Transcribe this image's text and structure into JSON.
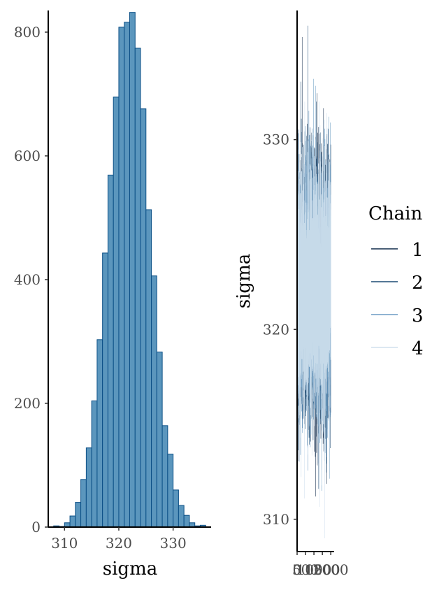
{
  "chart_data": [
    {
      "type": "bar",
      "panel": "histogram",
      "xlabel": "sigma",
      "ylabel": "",
      "xlim": [
        307,
        337
      ],
      "ylim": [
        0,
        835
      ],
      "x_ticks": [
        310,
        320,
        330
      ],
      "y_ticks": [
        0,
        200,
        400,
        600,
        800
      ],
      "bin_width": 1,
      "bin_starts": [
        308,
        309,
        310,
        311,
        312,
        313,
        314,
        315,
        316,
        317,
        318,
        319,
        320,
        321,
        322,
        323,
        324,
        325,
        326,
        327,
        328,
        329,
        330,
        331,
        332,
        333,
        334,
        335
      ],
      "values": [
        2,
        1,
        7,
        18,
        40,
        77,
        128,
        204,
        303,
        443,
        569,
        695,
        808,
        816,
        832,
        774,
        676,
        513,
        406,
        283,
        164,
        118,
        60,
        35,
        19,
        7,
        2,
        3
      ],
      "fill_color": "#5b96bd",
      "edge_color": "#0b4f86"
    },
    {
      "type": "line",
      "panel": "trace",
      "xlabel": "",
      "ylabel": "sigma",
      "xlim": [
        0,
        2200
      ],
      "ylim": [
        308.3,
        336.8
      ],
      "x_ticks": [
        0,
        500,
        1000,
        1500,
        2000
      ],
      "x_tick_labels": [
        "0",
        "500",
        "1000",
        "1500",
        "2000"
      ],
      "y_ticks": [
        310,
        320,
        330
      ],
      "iterations": 2000,
      "legend": {
        "title": "Chain",
        "position": "right",
        "entries": [
          {
            "label": "1",
            "color": "#0f2a4a"
          },
          {
            "label": "2",
            "color": "#1c4a73"
          },
          {
            "label": "3",
            "color": "#6b9cc3"
          },
          {
            "label": "4",
            "color": "#d0e1ee"
          }
        ]
      },
      "series": [
        {
          "name": "1",
          "color": "#0f2a4a",
          "mean": 322.2,
          "sd": 3.1,
          "max": 335.4,
          "min": 311.2
        },
        {
          "name": "2",
          "color": "#1c4a73",
          "mean": 322.2,
          "sd": 3.1,
          "max": 336.0,
          "min": 311.6
        },
        {
          "name": "3",
          "color": "#6b9cc3",
          "mean": 322.2,
          "sd": 3.1,
          "max": 333.2,
          "min": 311.5
        },
        {
          "name": "4",
          "color": "#d0e1ee",
          "mean": 322.2,
          "sd": 3.1,
          "max": 332.0,
          "min": 309.0
        }
      ]
    }
  ]
}
